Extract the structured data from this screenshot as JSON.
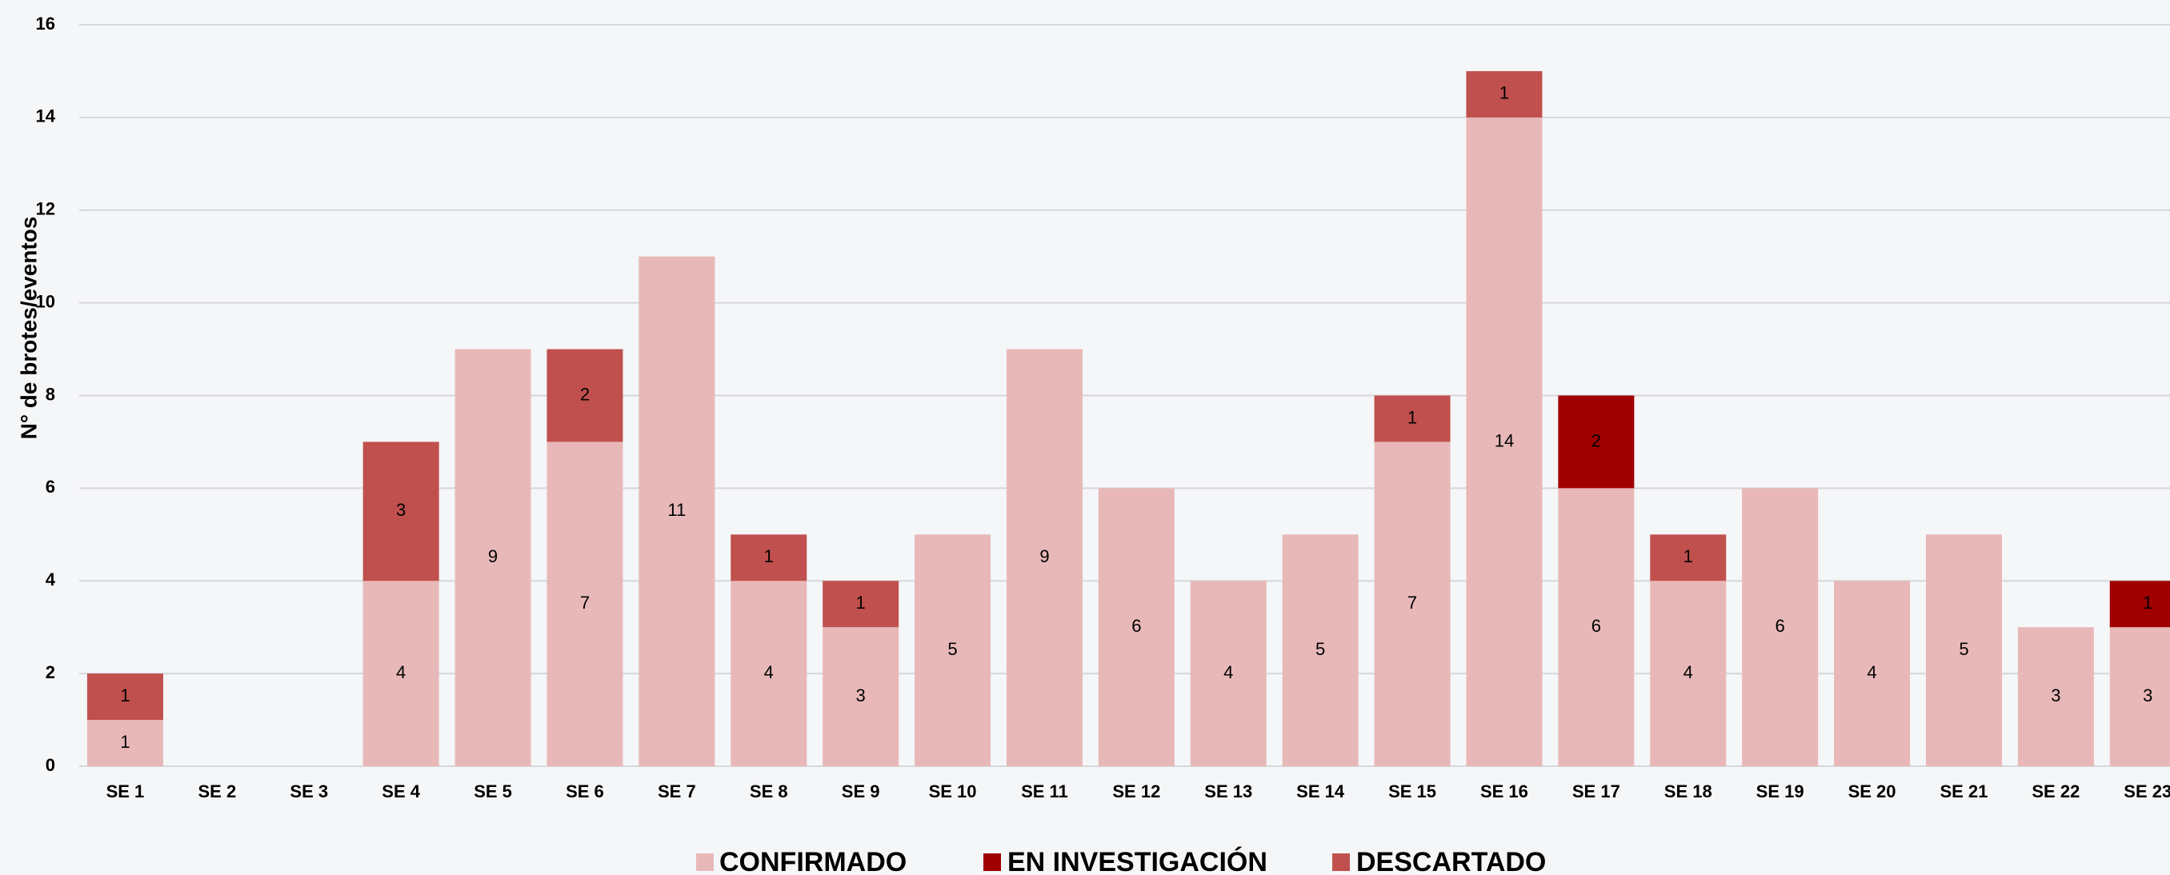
{
  "chart_data": {
    "type": "stacked_bar",
    "y_label": "N° de brotes/eventos",
    "categories": [
      "SE 1",
      "SE 2",
      "SE 3",
      "SE 4",
      "SE 5",
      "SE 6",
      "SE 7",
      "SE 8",
      "SE 9",
      "SE 10",
      "SE 11",
      "SE 12",
      "SE 13",
      "SE 14",
      "SE 15",
      "SE 16",
      "SE 17",
      "SE 18",
      "SE 19",
      "SE 20",
      "SE 21",
      "SE 22",
      "SE 23"
    ],
    "series": [
      {
        "name": "CONFIRMADO",
        "color": "#e8b8b8",
        "values": [
          1,
          null,
          null,
          4,
          9,
          7,
          11,
          4,
          3,
          5,
          9,
          6,
          4,
          5,
          7,
          14,
          6,
          4,
          6,
          4,
          5,
          3,
          3
        ]
      },
      {
        "name": "EN INVESTIGACIÓN",
        "color": "#a00000",
        "values": [
          null,
          null,
          null,
          null,
          null,
          null,
          null,
          null,
          null,
          null,
          null,
          null,
          null,
          null,
          null,
          null,
          2,
          null,
          null,
          null,
          null,
          null,
          1
        ]
      },
      {
        "name": "DESCARTADO",
        "color": "#c0504d",
        "values": [
          1,
          null,
          null,
          3,
          null,
          2,
          null,
          1,
          1,
          null,
          null,
          null,
          null,
          null,
          1,
          1,
          null,
          1,
          null,
          null,
          null,
          null,
          null
        ]
      }
    ],
    "ylim": [
      0,
      16
    ],
    "yticks": [
      0,
      2,
      4,
      6,
      8,
      10,
      12,
      14,
      16
    ],
    "grid": true,
    "legend": "bottom"
  }
}
